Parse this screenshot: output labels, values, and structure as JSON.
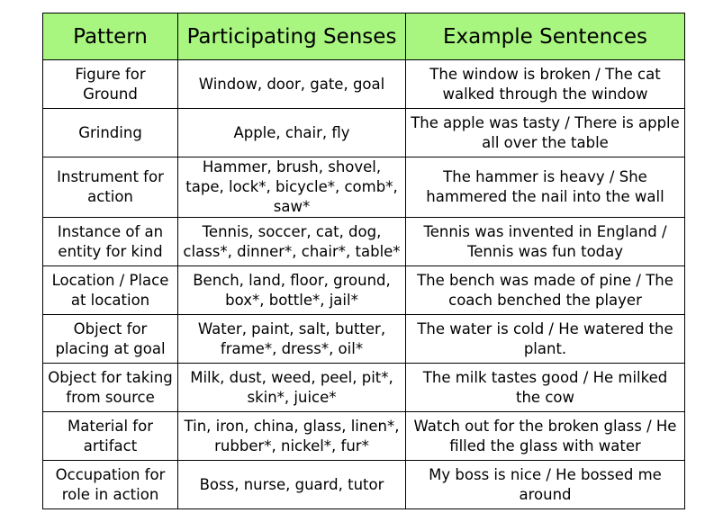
{
  "table": {
    "headers": [
      "Pattern",
      "Participating Senses",
      "Example Sentences"
    ],
    "rows": [
      {
        "pattern": "Figure for Ground",
        "senses": "Window, door, gate, goal",
        "examples": "The window is broken / The cat walked through the window"
      },
      {
        "pattern": "Grinding",
        "senses": "Apple, chair, fly",
        "examples": "The apple was tasty / There is apple all over the table"
      },
      {
        "pattern": "Instrument for action",
        "senses": "Hammer, brush, shovel, tape, lock*, bicycle*, comb*, saw*",
        "examples": "The hammer is heavy / She hammered the nail into the wall"
      },
      {
        "pattern": "Instance of an entity for kind",
        "senses": "Tennis, soccer, cat, dog, class*, dinner*, chair*, table*",
        "examples": "Tennis was invented in England / Tennis was fun today"
      },
      {
        "pattern": "Location / Place at location",
        "senses": "Bench, land, floor, ground, box*, bottle*, jail*",
        "examples": "The bench was made of pine / The coach benched the player"
      },
      {
        "pattern": "Object for placing at goal",
        "senses": "Water, paint, salt, butter, frame*, dress*, oil*",
        "examples": "The water is cold / He watered the plant."
      },
      {
        "pattern": "Object for taking from source",
        "senses": "Milk, dust, weed, peel, pit*, skin*, juice*",
        "examples": "The milk tastes good / He milked the cow"
      },
      {
        "pattern": "Material for artifact",
        "senses": "Tin, iron, china, glass, linen*, rubber*, nickel*, fur*",
        "examples": "Watch out for the broken glass / He filled the glass with water"
      },
      {
        "pattern": "Occupation for role in action",
        "senses": "Boss, nurse, guard, tutor",
        "examples": "My boss is nice / He bossed me around"
      }
    ]
  },
  "colors": {
    "header_background": "#a8f57f",
    "border": "#000000"
  }
}
